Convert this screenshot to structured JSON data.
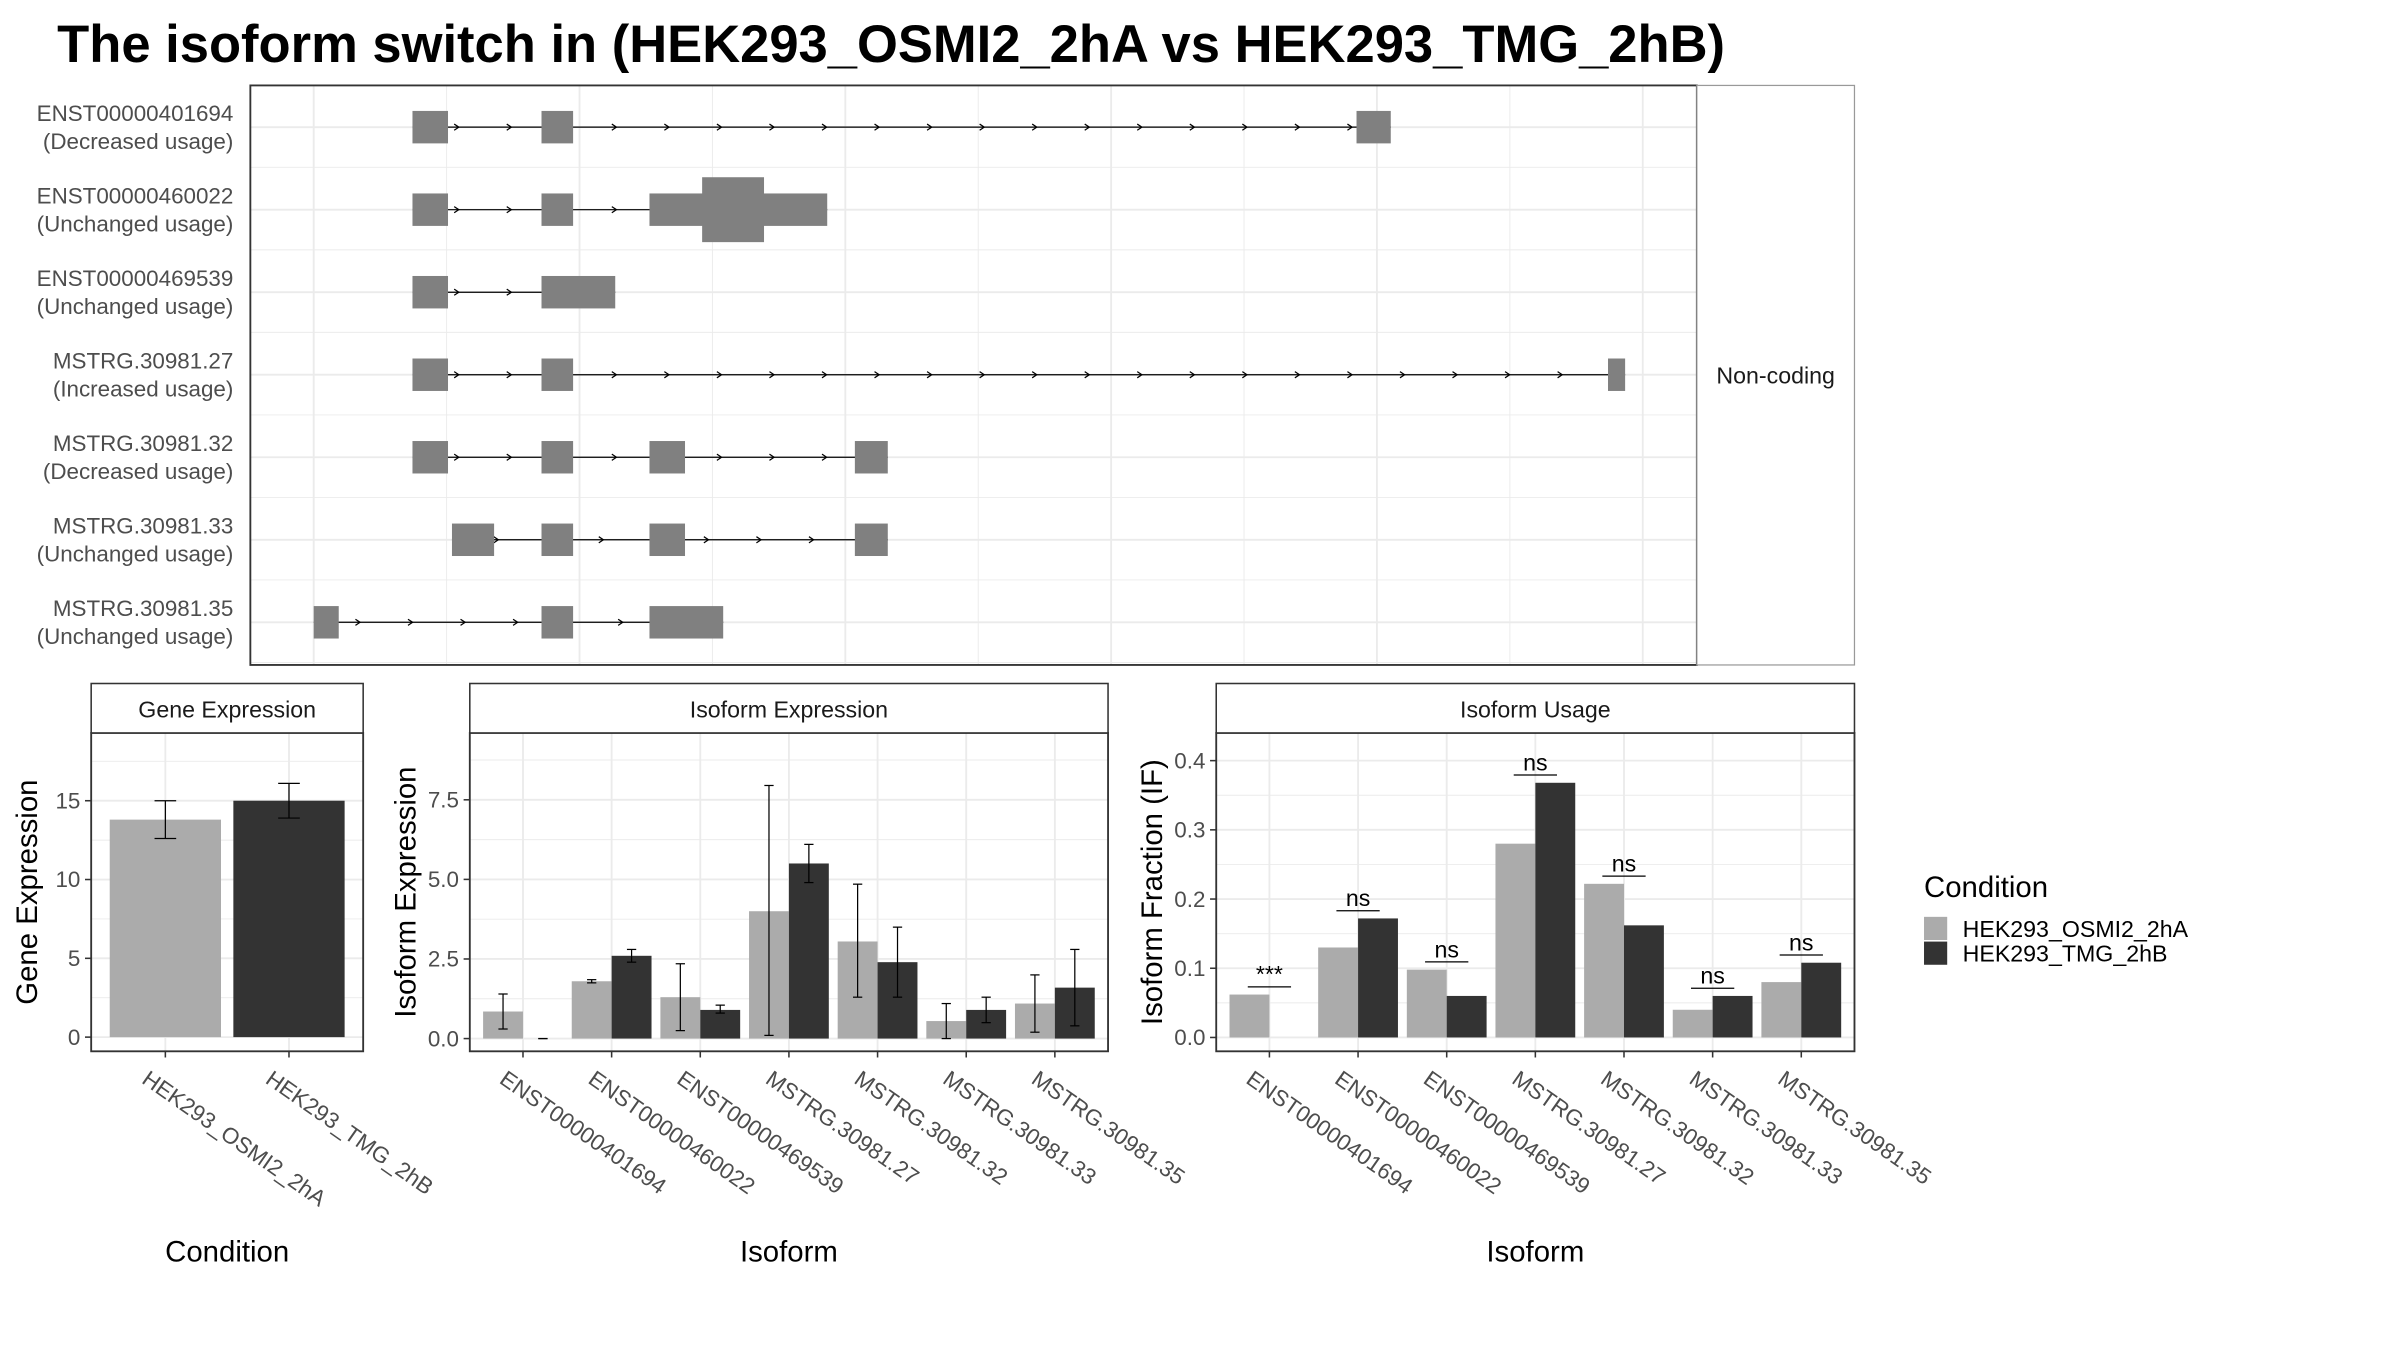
{
  "title": "The isoform switch in  (HEK293_OSMI2_2hA vs HEK293_TMG_2hB)",
  "colors": {
    "osmi": "#ABABAB",
    "tmg": "#333333",
    "exon": "#808080",
    "grid": "#EBEBEB",
    "strip_bg": "#FFFFFF",
    "frame": "#333333"
  },
  "chart_data": [
    {
      "type": "gene-structure",
      "facet_label": "Non-coding",
      "x_range": [
        0,
        100
      ],
      "transcripts": [
        {
          "id": "ENST00000401694",
          "status": "(Decreased usage)",
          "exons": [
            [
              7.5,
              10.2
            ],
            [
              17.3,
              19.7
            ],
            [
              79.2,
              81.8
            ]
          ],
          "wide": []
        },
        {
          "id": "ENST00000460022",
          "status": "(Unchanged usage)",
          "exons": [
            [
              7.5,
              10.2
            ],
            [
              17.3,
              19.7
            ],
            [
              25.5,
              39.0
            ]
          ],
          "wide": [
            [
              29.5,
              34.2
            ]
          ]
        },
        {
          "id": "ENST00000469539",
          "status": "(Unchanged usage)",
          "exons": [
            [
              7.5,
              10.2
            ],
            [
              17.3,
              22.9
            ]
          ],
          "wide": []
        },
        {
          "id": "MSTRG.30981.27",
          "status": "(Increased usage)",
          "exons": [
            [
              7.5,
              10.2
            ],
            [
              17.3,
              19.7
            ],
            [
              98.3,
              99.6
            ]
          ],
          "wide": []
        },
        {
          "id": "MSTRG.30981.32",
          "status": "(Decreased usage)",
          "exons": [
            [
              7.5,
              10.2
            ],
            [
              17.3,
              19.7
            ],
            [
              25.5,
              28.2
            ],
            [
              41.1,
              43.6
            ]
          ],
          "wide": []
        },
        {
          "id": "MSTRG.30981.33",
          "status": "(Unchanged usage)",
          "exons": [
            [
              10.5,
              13.7
            ],
            [
              17.3,
              19.7
            ],
            [
              25.5,
              28.2
            ],
            [
              41.1,
              43.6
            ]
          ],
          "wide": []
        },
        {
          "id": "MSTRG.30981.35",
          "status": "(Unchanged usage)",
          "exons": [
            [
              0.0,
              1.9
            ],
            [
              17.3,
              19.7
            ],
            [
              25.5,
              31.1
            ]
          ],
          "wide": []
        }
      ]
    },
    {
      "type": "bar",
      "panel": "Gene Expression",
      "xlabel": "Condition",
      "ylabel": "Gene Expression",
      "ylim": [
        -0.9,
        19.3
      ],
      "yticks": [
        0,
        5,
        10,
        15
      ],
      "categories": [
        "HEK293_OSMI2_2hA",
        "HEK293_TMG_2hB"
      ],
      "values": [
        13.8,
        15.0
      ],
      "err_low": [
        12.6,
        13.9
      ],
      "err_high": [
        15.0,
        16.1
      ]
    },
    {
      "type": "bar",
      "panel": "Isoform Expression",
      "xlabel": "Isoform",
      "ylabel": "Isoform Expression",
      "ylim": [
        -0.4,
        9.6
      ],
      "yticks": [
        "0.0",
        "2.5",
        "5.0",
        "7.5"
      ],
      "categories": [
        "ENST00000401694",
        "ENST00000460022",
        "ENST00000469539",
        "MSTRG.30981.27",
        "MSTRG.30981.32",
        "MSTRG.30981.33",
        "MSTRG.30981.35"
      ],
      "series": [
        {
          "name": "HEK293_OSMI2_2hA",
          "values": [
            0.85,
            1.8,
            1.3,
            4.0,
            3.05,
            0.55,
            1.1
          ],
          "err_low": [
            0.3,
            1.75,
            0.25,
            0.1,
            1.3,
            0.0,
            0.2
          ],
          "err_high": [
            1.4,
            1.85,
            2.35,
            7.95,
            4.85,
            1.1,
            2.0
          ]
        },
        {
          "name": "HEK293_TMG_2hB",
          "values": [
            0.0,
            2.6,
            0.9,
            5.5,
            2.4,
            0.9,
            1.6
          ],
          "err_low": [
            0.0,
            2.4,
            0.8,
            4.9,
            1.3,
            0.5,
            0.4
          ],
          "err_high": [
            0.0,
            2.8,
            1.05,
            6.1,
            3.5,
            1.3,
            2.8
          ]
        }
      ]
    },
    {
      "type": "bar",
      "panel": "Isoform Usage",
      "xlabel": "Isoform",
      "ylabel": "Isoform Fraction (IF)",
      "ylim": [
        -0.02,
        0.44
      ],
      "yticks": [
        "0.0",
        "0.1",
        "0.2",
        "0.3",
        "0.4"
      ],
      "categories": [
        "ENST00000401694",
        "ENST00000460022",
        "ENST00000469539",
        "MSTRG.30981.27",
        "MSTRG.30981.32",
        "MSTRG.30981.33",
        "MSTRG.30981.35"
      ],
      "series": [
        {
          "name": "HEK293_OSMI2_2hA",
          "values": [
            0.062,
            0.13,
            0.098,
            0.28,
            0.222,
            0.04,
            0.08
          ]
        },
        {
          "name": "HEK293_TMG_2hB",
          "values": [
            0.0,
            0.172,
            0.06,
            0.368,
            0.162,
            0.06,
            0.108
          ]
        }
      ],
      "significance": [
        "***",
        "ns",
        "ns",
        "ns",
        "ns",
        "ns",
        "ns"
      ]
    }
  ],
  "legend": {
    "title": "Condition",
    "entries": [
      "HEK293_OSMI2_2hA",
      "HEK293_TMG_2hB"
    ]
  }
}
